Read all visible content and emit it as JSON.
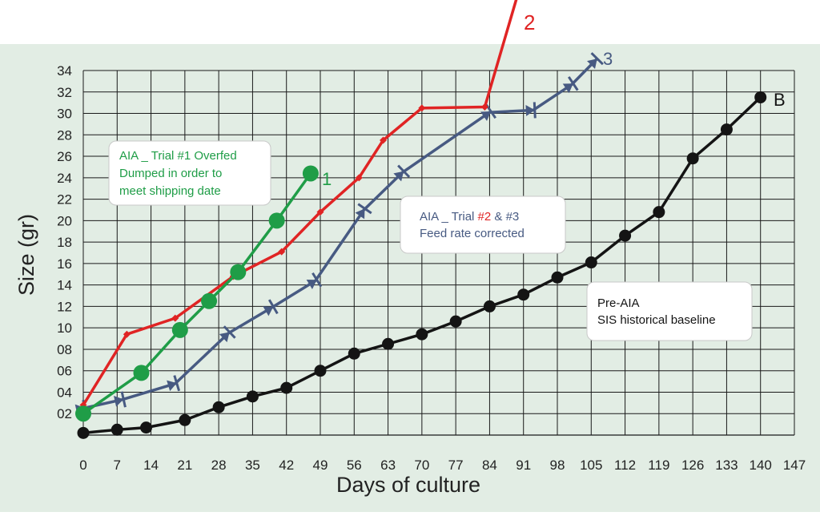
{
  "chart_data": {
    "type": "line",
    "xlabel": "Days of culture",
    "ylabel": "Size (gr)",
    "xlim": [
      0,
      147
    ],
    "ylim": [
      0,
      34
    ],
    "x_ticks": [
      "0",
      "7",
      "14",
      "21",
      "28",
      "35",
      "42",
      "49",
      "56",
      "63",
      "70",
      "77",
      "84",
      "91",
      "98",
      "105",
      "112",
      "119",
      "126",
      "133",
      "140",
      "147"
    ],
    "y_ticks": [
      "02",
      "04",
      "06",
      "08",
      "10",
      "12",
      "14",
      "16",
      "18",
      "20",
      "22",
      "24",
      "26",
      "28",
      "30",
      "32",
      "34"
    ],
    "grid": true,
    "colors": {
      "background": "#e2ede4",
      "series_1": "#1f9d47",
      "series_2": "#e02424",
      "series_3": "#475a82",
      "series_b": "#141414"
    },
    "series": [
      {
        "name": "1",
        "color": "#1f9d47",
        "marker": "circle",
        "points": [
          [
            0,
            2.0
          ],
          [
            12,
            5.8
          ],
          [
            20,
            9.8
          ],
          [
            26,
            12.5
          ],
          [
            32,
            15.2
          ],
          [
            40,
            20.0
          ],
          [
            47,
            24.4
          ]
        ]
      },
      {
        "name": "2",
        "color": "#e02424",
        "marker": "diamond",
        "points": [
          [
            0,
            2.8
          ],
          [
            9,
            9.4
          ],
          [
            19,
            10.9
          ],
          [
            31,
            14.8
          ],
          [
            41,
            17.1
          ],
          [
            49,
            20.8
          ],
          [
            57,
            24.0
          ],
          [
            62,
            27.5
          ],
          [
            70,
            30.5
          ],
          [
            83,
            30.6
          ],
          [
            93,
            46.0
          ]
        ]
      },
      {
        "name": "3",
        "color": "#475a82",
        "marker": "x",
        "points": [
          [
            0,
            2.5
          ],
          [
            8,
            3.3
          ],
          [
            19,
            4.8
          ],
          [
            30,
            9.5
          ],
          [
            39,
            11.9
          ],
          [
            48,
            14.4
          ],
          [
            58,
            21.0
          ],
          [
            66,
            24.5
          ],
          [
            84,
            30.1
          ],
          [
            93,
            30.3
          ],
          [
            101,
            32.7
          ],
          [
            106,
            35.0
          ]
        ]
      },
      {
        "name": "B",
        "color": "#141414",
        "marker": "circle",
        "points": [
          [
            0,
            0.2
          ],
          [
            7,
            0.5
          ],
          [
            13,
            0.7
          ],
          [
            21,
            1.4
          ],
          [
            28,
            2.6
          ],
          [
            35,
            3.6
          ],
          [
            42,
            4.4
          ],
          [
            49,
            6.0
          ],
          [
            56,
            7.6
          ],
          [
            63,
            8.5
          ],
          [
            70,
            9.4
          ],
          [
            77,
            10.6
          ],
          [
            84,
            12.0
          ],
          [
            91,
            13.1
          ],
          [
            98,
            14.7
          ],
          [
            105,
            16.1
          ],
          [
            112,
            18.6
          ],
          [
            119,
            20.8
          ],
          [
            126,
            25.8
          ],
          [
            133,
            28.5
          ],
          [
            140,
            31.5
          ]
        ]
      }
    ],
    "annotations": [
      {
        "lines": [
          "AIA _ Trial #1 Overfed",
          "Dumped in order to",
          "meet shipping date"
        ]
      },
      {
        "lines": [
          "AIA _ Trial ",
          "#2",
          " & #3",
          "Feed rate corrected"
        ]
      },
      {
        "lines": [
          "Pre-AIA",
          "SIS historical baseline"
        ]
      }
    ]
  }
}
